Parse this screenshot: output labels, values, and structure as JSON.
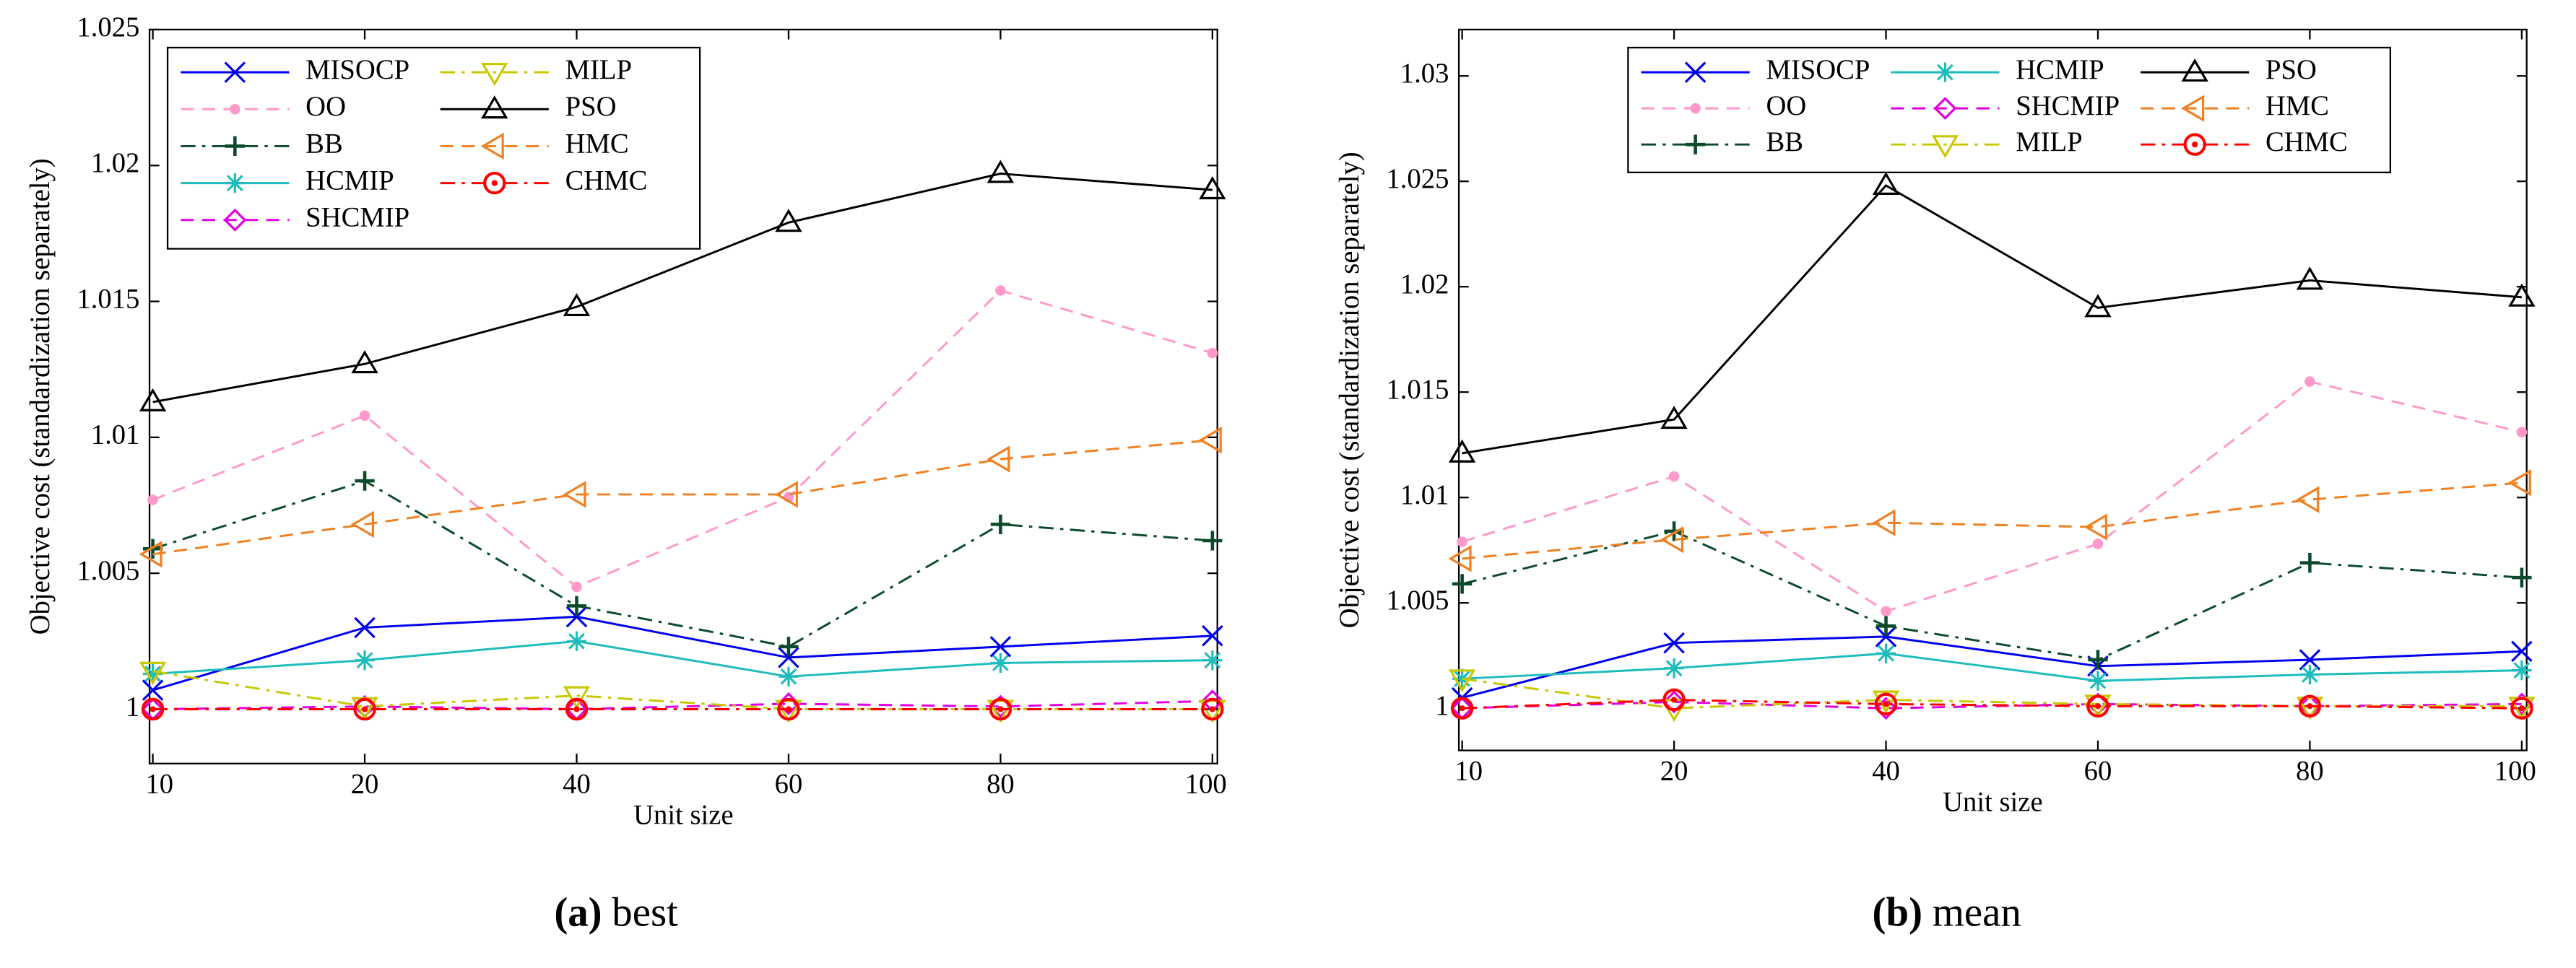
{
  "chart_data": [
    {
      "type": "line",
      "xlabel": "Unit size",
      "ylabel": "Objective cost (standardization separately)",
      "caption_label": "(a)",
      "caption_text": "best",
      "categories": [
        "10",
        "20",
        "40",
        "60",
        "80",
        "100"
      ],
      "ylim": [
        0.998,
        1.025
      ],
      "yticks": [
        1,
        1.005,
        1.01,
        1.015,
        1.02,
        1.025
      ],
      "legend": {
        "loc": "upper left",
        "columns": 2
      },
      "series": [
        {
          "name": "MISOCP",
          "color": "#0000ee",
          "marker": "x",
          "dash": "solid",
          "values": [
            1.0007,
            1.003,
            1.0034,
            1.0019,
            1.0023,
            1.0027
          ]
        },
        {
          "name": "OO",
          "color": "#ff99cc",
          "marker": "dot",
          "dash": "dashed",
          "values": [
            1.0077,
            1.0108,
            1.0045,
            1.0078,
            1.0154,
            1.0131
          ]
        },
        {
          "name": "BB",
          "color": "#0b4a2a",
          "marker": "plus",
          "dash": "dashdot",
          "values": [
            1.0059,
            1.0084,
            1.0038,
            1.0023,
            1.0068,
            1.0062
          ]
        },
        {
          "name": "HCMIP",
          "color": "#1ebcbc",
          "marker": "star",
          "dash": "solid",
          "values": [
            1.0013,
            1.0018,
            1.0025,
            1.0012,
            1.0017,
            1.0018
          ]
        },
        {
          "name": "SHCMIP",
          "color": "#e000e0",
          "marker": "diamond",
          "dash": "dashed",
          "values": [
            1.0,
            1.0001,
            1.0,
            1.0002,
            1.0001,
            1.0003
          ]
        },
        {
          "name": "MILP",
          "color": "#c8c800",
          "marker": "tri-down",
          "dash": "dashdot",
          "values": [
            1.0014,
            1.0001,
            1.0005,
            1.0,
            1.0,
            1.0
          ]
        },
        {
          "name": "PSO",
          "color": "#000000",
          "marker": "tri-up",
          "dash": "solid",
          "values": [
            1.0113,
            1.0127,
            1.0148,
            1.0179,
            1.0197,
            1.0191
          ]
        },
        {
          "name": "HMC",
          "color": "#f08020",
          "marker": "tri-left",
          "dash": "dashed",
          "values": [
            1.0057,
            1.0068,
            1.0079,
            1.0079,
            1.0092,
            1.0099
          ]
        },
        {
          "name": "CHMC",
          "color": "#ff0000",
          "marker": "circle-dot",
          "dash": "dashdot",
          "values": [
            1.0,
            1.0,
            1.0,
            1.0,
            1.0,
            1.0
          ]
        }
      ]
    },
    {
      "type": "line",
      "xlabel": "Unit size",
      "ylabel": "Objective cost (standardization separately)",
      "caption_label": "(b)",
      "caption_text": "mean",
      "categories": [
        "10",
        "20",
        "40",
        "60",
        "80",
        "100"
      ],
      "ylim": [
        0.998,
        1.0322
      ],
      "yticks": [
        1,
        1.005,
        1.01,
        1.015,
        1.02,
        1.025,
        1.03
      ],
      "legend": {
        "loc": "upper center",
        "columns": 3
      },
      "series": [
        {
          "name": "MISOCP",
          "color": "#0000ee",
          "marker": "x",
          "dash": "solid",
          "values": [
            1.0005,
            1.0031,
            1.0034,
            1.002,
            1.0023,
            1.0027
          ]
        },
        {
          "name": "OO",
          "color": "#ff99cc",
          "marker": "dot",
          "dash": "dashed",
          "values": [
            1.0079,
            1.011,
            1.0046,
            1.0078,
            1.0155,
            1.0131
          ]
        },
        {
          "name": "BB",
          "color": "#0b4a2a",
          "marker": "plus",
          "dash": "dashdot",
          "values": [
            1.0059,
            1.0084,
            1.0039,
            1.0023,
            1.0069,
            1.0062
          ]
        },
        {
          "name": "HCMIP",
          "color": "#1ebcbc",
          "marker": "star",
          "dash": "solid",
          "values": [
            1.0014,
            1.0019,
            1.0026,
            1.0013,
            1.0016,
            1.0018
          ]
        },
        {
          "name": "SHCMIP",
          "color": "#e000e0",
          "marker": "diamond",
          "dash": "dashed",
          "values": [
            1.0,
            1.0003,
            1.0,
            1.0002,
            1.0001,
            1.0002
          ]
        },
        {
          "name": "MILP",
          "color": "#c8c800",
          "marker": "tri-down",
          "dash": "dashdot",
          "values": [
            1.0014,
            1.0,
            1.0004,
            1.0002,
            1.0001,
            1.0001
          ]
        },
        {
          "name": "PSO",
          "color": "#000000",
          "marker": "tri-up",
          "dash": "solid",
          "values": [
            1.0121,
            1.0137,
            1.0248,
            1.019,
            1.0203,
            1.0195
          ]
        },
        {
          "name": "HMC",
          "color": "#f08020",
          "marker": "tri-left",
          "dash": "dashed",
          "values": [
            1.0071,
            1.008,
            1.0088,
            1.0086,
            1.0099,
            1.0107
          ]
        },
        {
          "name": "CHMC",
          "color": "#ff0000",
          "marker": "circle-dot",
          "dash": "dashdot",
          "values": [
            1.0,
            1.0004,
            1.0002,
            1.0001,
            1.0001,
            1.0
          ]
        }
      ]
    }
  ]
}
